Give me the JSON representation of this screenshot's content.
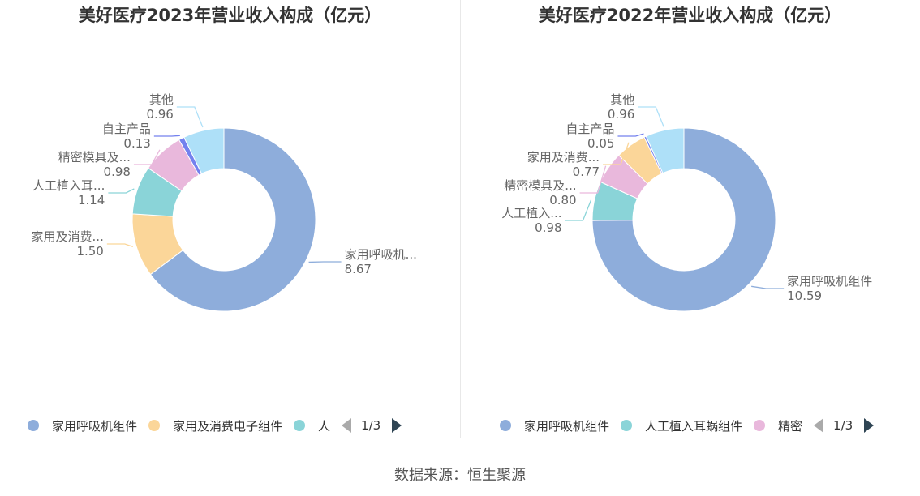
{
  "source": "数据来源：恒生聚源",
  "colors": [
    "#8eaddb",
    "#fbd699",
    "#8ad4d8",
    "#e9b8dc",
    "#7381ee",
    "#aee0f8"
  ],
  "chart_data": [
    {
      "type": "pie",
      "title": "美好医疗2023年营业收入构成（亿元）",
      "slices": [
        {
          "name": "家用呼吸机组件",
          "label": "家用呼吸机...",
          "value": 8.67,
          "color": "#8eaddb"
        },
        {
          "name": "家用及消费电子组件",
          "label": "家用及消费...",
          "value": 1.5,
          "color": "#fbd699"
        },
        {
          "name": "人工植入耳蜗组件",
          "label": "人工植入耳...",
          "value": 1.14,
          "color": "#8ad4d8"
        },
        {
          "name": "精密模具及自动化设备",
          "label": "精密模具及...",
          "value": 0.98,
          "color": "#e9b8dc"
        },
        {
          "name": "自主产品",
          "label": "自主产品",
          "value": 0.13,
          "color": "#7381ee"
        },
        {
          "name": "其他",
          "label": "其他",
          "value": 0.96,
          "color": "#aee0f8"
        }
      ],
      "legend": {
        "items": [
          {
            "label": "家用呼吸机组件",
            "color": "#8eaddb"
          },
          {
            "label": "家用及消费电子组件",
            "color": "#fbd699"
          },
          {
            "label": "人",
            "color": "#8ad4d8"
          }
        ],
        "page": "1/3"
      }
    },
    {
      "type": "pie",
      "title": "美好医疗2022年营业收入构成（亿元）",
      "slices": [
        {
          "name": "家用呼吸机组件",
          "label": "家用呼吸机组件",
          "value": 10.59,
          "color": "#8eaddb"
        },
        {
          "name": "人工植入耳蜗组件",
          "label": "人工植入...",
          "value": 0.98,
          "color": "#8ad4d8"
        },
        {
          "name": "精密模具及自动化设备",
          "label": "精密模具及...",
          "value": 0.8,
          "color": "#e9b8dc"
        },
        {
          "name": "家用及消费电子组件",
          "label": "家用及消费...",
          "value": 0.77,
          "color": "#fbd699"
        },
        {
          "name": "自主产品",
          "label": "自主产品",
          "value": 0.05,
          "color": "#7381ee"
        },
        {
          "name": "其他",
          "label": "其他",
          "value": 0.96,
          "color": "#aee0f8"
        }
      ],
      "legend": {
        "items": [
          {
            "label": "家用呼吸机组件",
            "color": "#8eaddb"
          },
          {
            "label": "人工植入耳蜗组件",
            "color": "#8ad4d8"
          },
          {
            "label": "精密",
            "color": "#e9b8dc"
          }
        ],
        "page": "1/3"
      }
    }
  ]
}
